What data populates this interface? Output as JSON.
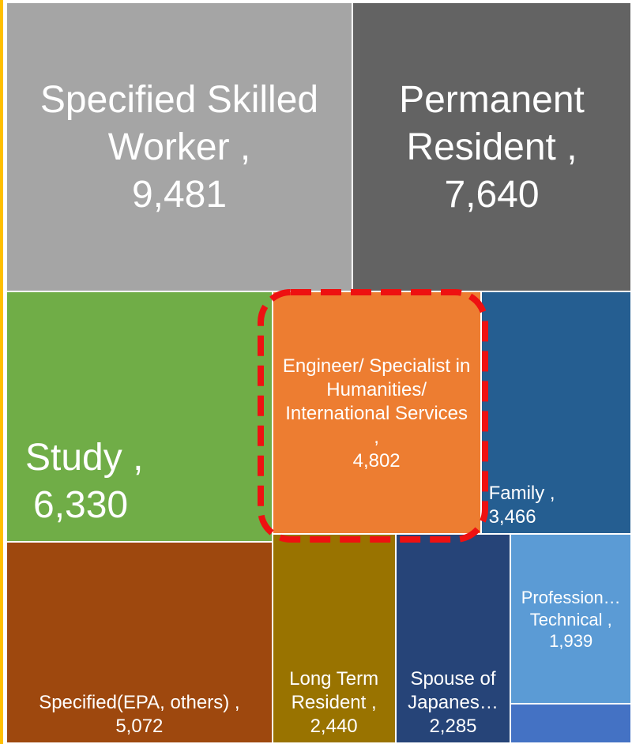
{
  "chart_data": {
    "type": "treemap",
    "categories": [
      "Specified Skilled Worker ,",
      "Permanent Resident ,",
      "Study ,",
      "Engineer/ Specialist in Humanities/ International Services ,",
      "Family ,",
      "Specified(EPA, others) ,",
      "Long Term Resident ,",
      "Spouse of Japanes…",
      "Profession… Technical ,",
      null
    ],
    "values": [
      9481,
      7640,
      6330,
      4802,
      3466,
      5072,
      2440,
      2285,
      1939,
      450
    ],
    "value_labels": [
      "9,481",
      "7,640",
      "6,330",
      "4,802",
      "3,466",
      "5,072",
      "2,440",
      "2,285",
      "1,939",
      null
    ],
    "colors": [
      "#a5a5a5",
      "#636363",
      "#70ad47",
      "#ed7d31",
      "#255e91",
      "#9e480e",
      "#997300",
      "#264478",
      "#5b9bd5",
      "#4472c4"
    ]
  }
}
